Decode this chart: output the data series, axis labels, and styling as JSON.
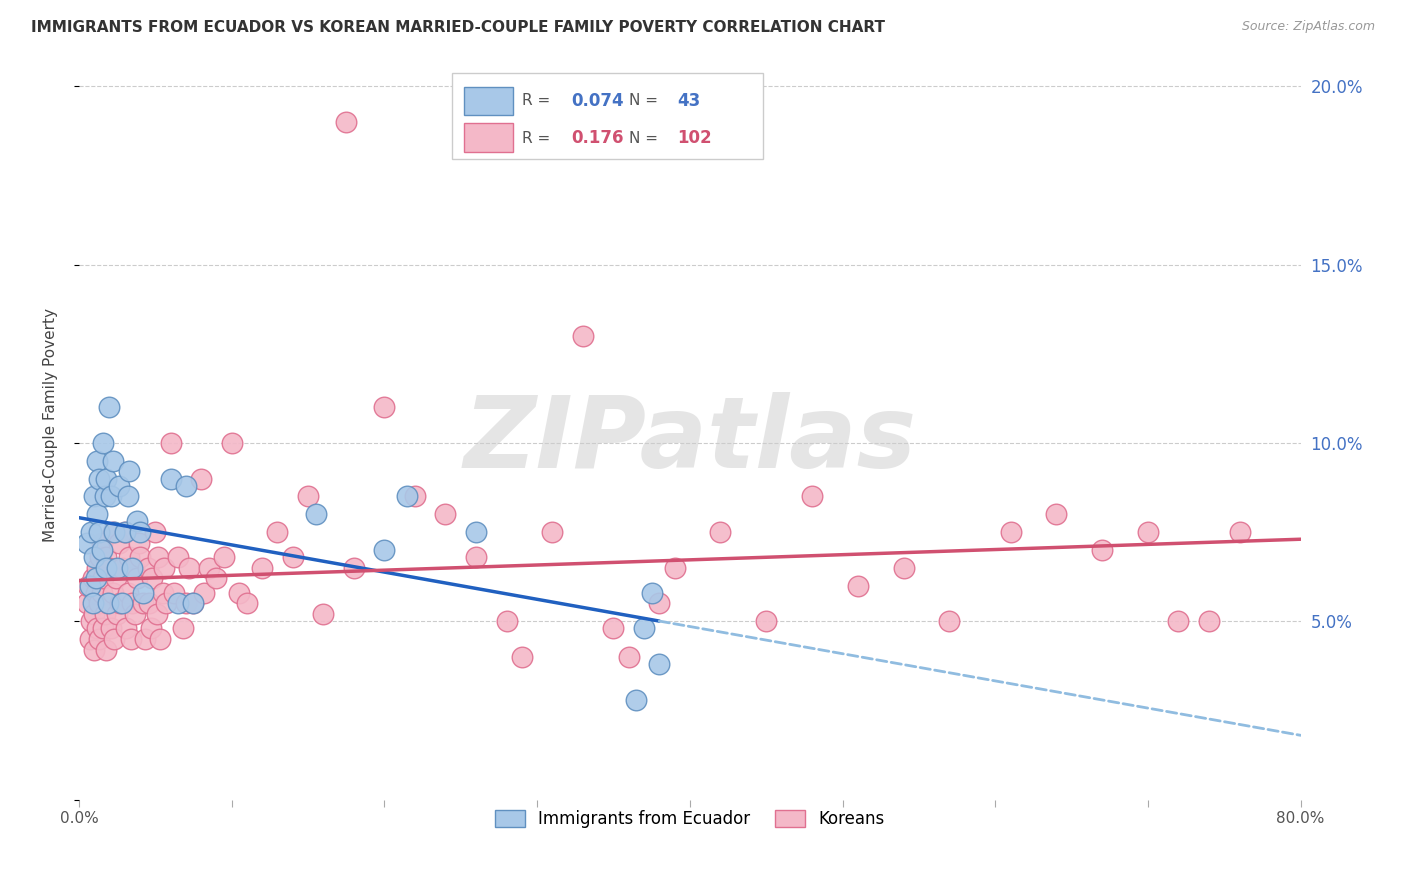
{
  "title": "IMMIGRANTS FROM ECUADOR VS KOREAN MARRIED-COUPLE FAMILY POVERTY CORRELATION CHART",
  "source": "Source: ZipAtlas.com",
  "ylabel": "Married-Couple Family Poverty",
  "watermark": "ZIPatlas",
  "background_color": "#ffffff",
  "legend_r1_val": "0.074",
  "legend_n1_val": "43",
  "legend_r2_val": "0.176",
  "legend_n2_val": "102",
  "group1_label": "Immigrants from Ecuador",
  "group2_label": "Koreans",
  "group1_color": "#a8c8e8",
  "group2_color": "#f4b8c8",
  "group1_edge_color": "#6090c0",
  "group2_edge_color": "#e07090",
  "trend1_color": "#2060c0",
  "trend2_color": "#d05070",
  "dashed_color": "#90bce0",
  "xmin": 0.0,
  "xmax": 0.8,
  "ymin": 0.0,
  "ymax": 0.21,
  "yticks": [
    0.0,
    0.05,
    0.1,
    0.15,
    0.2
  ],
  "ytick_labels": [
    "",
    "5.0%",
    "10.0%",
    "15.0%",
    "20.0%"
  ],
  "xticks": [
    0.0,
    0.1,
    0.2,
    0.3,
    0.4,
    0.5,
    0.6,
    0.7,
    0.8
  ],
  "xtick_labels": [
    "0.0%",
    "",
    "",
    "",
    "",
    "",
    "",
    "",
    "80.0%"
  ],
  "ecuador_x": [
    0.005,
    0.007,
    0.008,
    0.009,
    0.01,
    0.01,
    0.011,
    0.012,
    0.012,
    0.013,
    0.013,
    0.015,
    0.016,
    0.017,
    0.018,
    0.018,
    0.019,
    0.02,
    0.021,
    0.022,
    0.023,
    0.025,
    0.026,
    0.028,
    0.03,
    0.032,
    0.033,
    0.035,
    0.038,
    0.04,
    0.042,
    0.06,
    0.065,
    0.07,
    0.075,
    0.155,
    0.2,
    0.215,
    0.26,
    0.365,
    0.37,
    0.375,
    0.38
  ],
  "ecuador_y": [
    0.072,
    0.06,
    0.075,
    0.055,
    0.085,
    0.068,
    0.062,
    0.095,
    0.08,
    0.09,
    0.075,
    0.07,
    0.1,
    0.085,
    0.065,
    0.09,
    0.055,
    0.11,
    0.085,
    0.095,
    0.075,
    0.065,
    0.088,
    0.055,
    0.075,
    0.085,
    0.092,
    0.065,
    0.078,
    0.075,
    0.058,
    0.09,
    0.055,
    0.088,
    0.055,
    0.08,
    0.07,
    0.085,
    0.075,
    0.028,
    0.048,
    0.058,
    0.038
  ],
  "korean_x": [
    0.005,
    0.006,
    0.007,
    0.008,
    0.009,
    0.01,
    0.01,
    0.011,
    0.012,
    0.012,
    0.013,
    0.013,
    0.014,
    0.015,
    0.015,
    0.016,
    0.016,
    0.017,
    0.018,
    0.018,
    0.019,
    0.02,
    0.021,
    0.022,
    0.022,
    0.023,
    0.024,
    0.025,
    0.026,
    0.027,
    0.028,
    0.03,
    0.031,
    0.032,
    0.033,
    0.034,
    0.035,
    0.036,
    0.037,
    0.038,
    0.039,
    0.04,
    0.042,
    0.043,
    0.045,
    0.046,
    0.047,
    0.048,
    0.05,
    0.051,
    0.052,
    0.053,
    0.055,
    0.056,
    0.057,
    0.06,
    0.062,
    0.065,
    0.068,
    0.07,
    0.072,
    0.075,
    0.08,
    0.082,
    0.085,
    0.09,
    0.095,
    0.1,
    0.105,
    0.11,
    0.12,
    0.13,
    0.14,
    0.15,
    0.16,
    0.18,
    0.2,
    0.22,
    0.24,
    0.26,
    0.28,
    0.31,
    0.33,
    0.36,
    0.39,
    0.42,
    0.45,
    0.48,
    0.51,
    0.54,
    0.57,
    0.61,
    0.64,
    0.67,
    0.7,
    0.72,
    0.74,
    0.76,
    0.175,
    0.29,
    0.35,
    0.38
  ],
  "korean_y": [
    0.055,
    0.06,
    0.045,
    0.05,
    0.062,
    0.052,
    0.042,
    0.058,
    0.065,
    0.048,
    0.055,
    0.045,
    0.068,
    0.072,
    0.058,
    0.048,
    0.062,
    0.052,
    0.042,
    0.068,
    0.055,
    0.065,
    0.048,
    0.058,
    0.075,
    0.045,
    0.062,
    0.052,
    0.072,
    0.055,
    0.065,
    0.075,
    0.048,
    0.058,
    0.068,
    0.045,
    0.055,
    0.065,
    0.052,
    0.062,
    0.072,
    0.068,
    0.055,
    0.045,
    0.065,
    0.055,
    0.048,
    0.062,
    0.075,
    0.052,
    0.068,
    0.045,
    0.058,
    0.065,
    0.055,
    0.1,
    0.058,
    0.068,
    0.048,
    0.055,
    0.065,
    0.055,
    0.09,
    0.058,
    0.065,
    0.062,
    0.068,
    0.1,
    0.058,
    0.055,
    0.065,
    0.075,
    0.068,
    0.085,
    0.052,
    0.065,
    0.11,
    0.085,
    0.08,
    0.068,
    0.05,
    0.075,
    0.13,
    0.04,
    0.065,
    0.075,
    0.05,
    0.085,
    0.06,
    0.065,
    0.05,
    0.075,
    0.08,
    0.07,
    0.075,
    0.05,
    0.05,
    0.075,
    0.19,
    0.04,
    0.048,
    0.055
  ]
}
